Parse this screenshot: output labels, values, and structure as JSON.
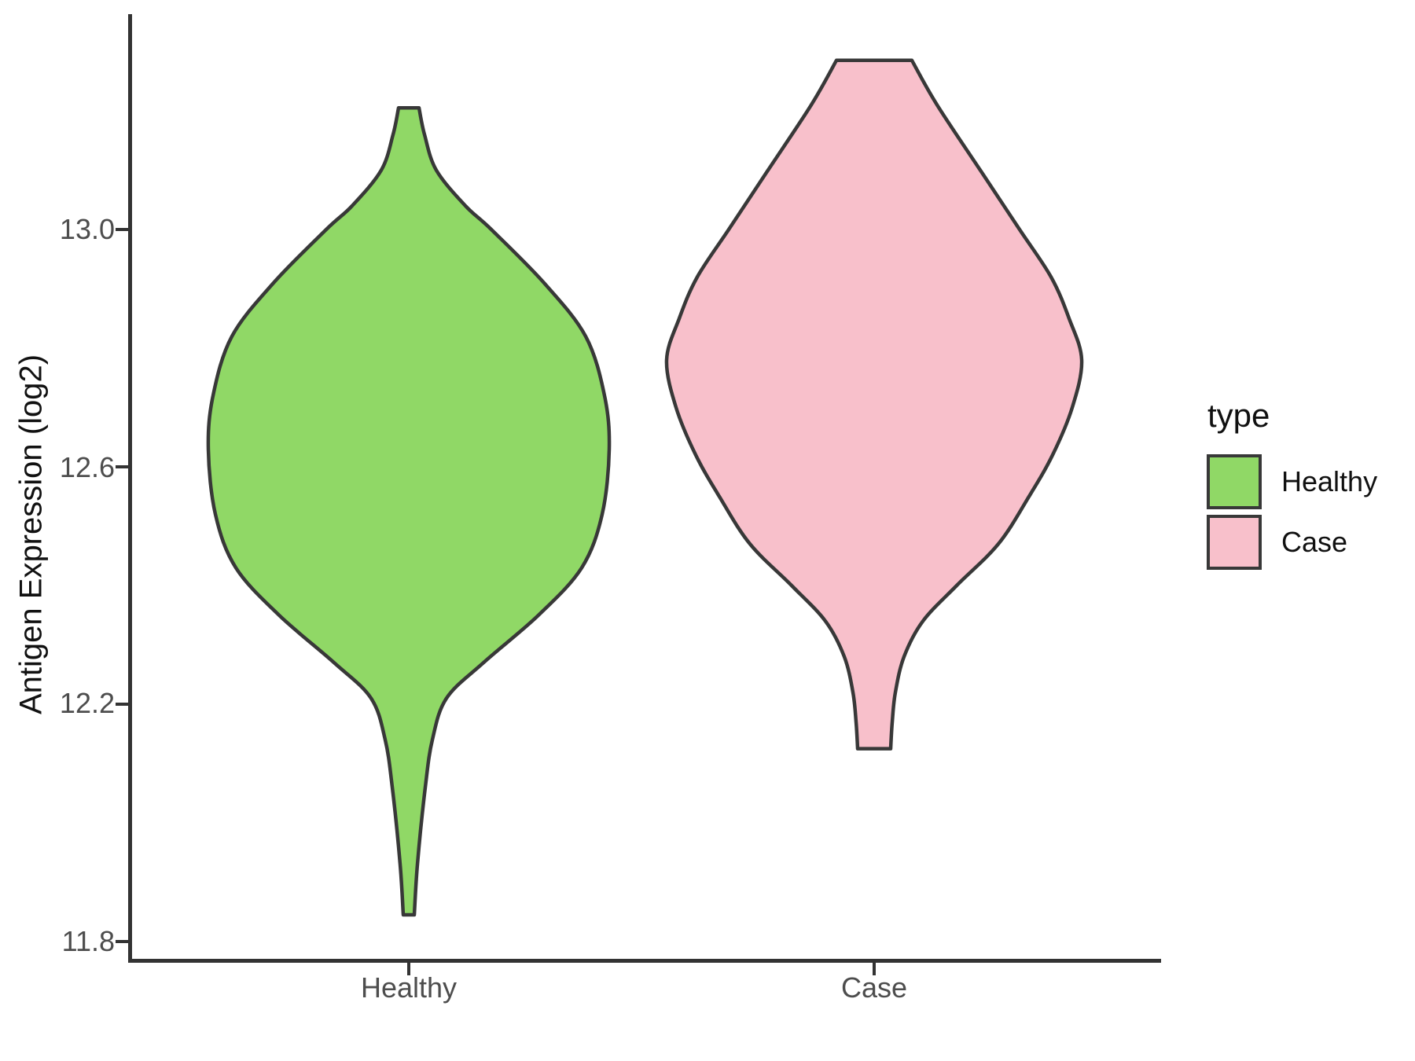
{
  "y_axis": {
    "title": "Antigen Expression (log2)",
    "ticks": [
      {
        "value": 13.0,
        "label": "13.0"
      },
      {
        "value": 12.6,
        "label": "12.6"
      },
      {
        "value": 12.2,
        "label": "12.2"
      },
      {
        "value": 11.8,
        "label": "11.8"
      }
    ]
  },
  "x_axis": {
    "categories": [
      {
        "label": "Healthy"
      },
      {
        "label": "Case"
      }
    ]
  },
  "legend": {
    "title": "type",
    "entries": [
      {
        "label": "Healthy",
        "color": "#90D866"
      },
      {
        "label": "Case",
        "color": "#F8C0CB"
      }
    ]
  },
  "colors": {
    "outline": "#383838",
    "axis": "#333333",
    "tick": "#333333",
    "tick_text": "#4d4d4d",
    "text": "#111111",
    "background": "#ffffff"
  },
  "chart_data": {
    "type": "violin",
    "title": "",
    "xlabel": "",
    "ylabel": "Antigen Expression (log2)",
    "ylim": [
      11.75,
      13.35
    ],
    "yticks": [
      11.8,
      12.2,
      12.6,
      13.0
    ],
    "categories": [
      "Healthy",
      "Case"
    ],
    "legend_position": "right",
    "grid": false,
    "groups": [
      {
        "name": "Healthy",
        "fill": "#90D866",
        "value_min": 11.84,
        "value_max": 13.21,
        "widest_at": 12.63,
        "profile": [
          [
            13.205,
            13
          ],
          [
            13.16,
            20
          ],
          [
            13.1,
            35
          ],
          [
            13.04,
            72
          ],
          [
            13.0,
            105
          ],
          [
            12.91,
            172
          ],
          [
            12.82,
            225
          ],
          [
            12.72,
            249
          ],
          [
            12.63,
            255
          ],
          [
            12.52,
            246
          ],
          [
            12.43,
            220
          ],
          [
            12.35,
            165
          ],
          [
            12.27,
            95
          ],
          [
            12.21,
            48
          ],
          [
            12.14,
            30
          ],
          [
            12.06,
            21
          ],
          [
            11.93,
            11
          ],
          [
            11.845,
            7
          ]
        ]
      },
      {
        "name": "Case",
        "fill": "#F8C0CB",
        "value_min": 12.12,
        "value_max": 13.29,
        "widest_at": 12.78,
        "profile": [
          [
            13.285,
            48
          ],
          [
            13.21,
            80
          ],
          [
            13.1,
            135
          ],
          [
            13.0,
            185
          ],
          [
            12.92,
            225
          ],
          [
            12.85,
            248
          ],
          [
            12.78,
            264
          ],
          [
            12.7,
            252
          ],
          [
            12.62,
            227
          ],
          [
            12.55,
            197
          ],
          [
            12.47,
            158
          ],
          [
            12.4,
            105
          ],
          [
            12.34,
            62
          ],
          [
            12.28,
            38
          ],
          [
            12.22,
            27
          ],
          [
            12.17,
            23
          ],
          [
            12.125,
            21
          ]
        ]
      }
    ]
  }
}
